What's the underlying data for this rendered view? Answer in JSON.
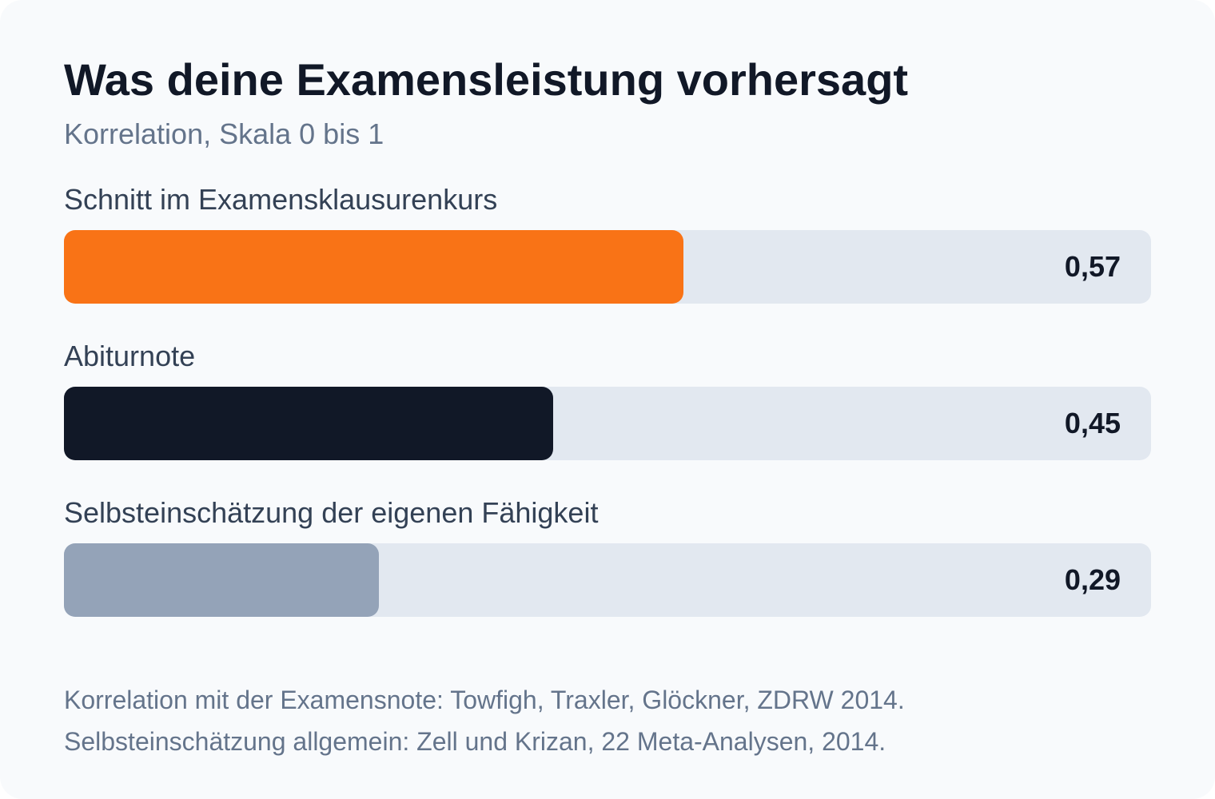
{
  "title": "Was deine Examensleistung vorhersagt",
  "subtitle": "Korrelation, Skala 0 bis 1",
  "sources": [
    "Korrelation mit der Examensnote: Towfigh, Traxler, Glöckner, ZDRW 2014.",
    "Selbsteinschätzung allgemein: Zell und Krizan, 22 Meta-Analysen, 2014."
  ],
  "colors": {
    "card_background": "#f8fafc",
    "track": "#e2e8f0",
    "text_dark": "#111827",
    "text_muted": "#64748b"
  },
  "chart_data": {
    "type": "bar",
    "orientation": "horizontal",
    "title": "Was deine Examensleistung vorhersagt",
    "subtitle": "Korrelation, Skala 0 bis 1",
    "xlim": [
      0,
      1
    ],
    "grid": false,
    "categories": [
      "Schnitt im Examensklausurenkurs",
      "Abiturnote",
      "Selbsteinschätzung der eigenen Fähigkeit"
    ],
    "values": [
      0.57,
      0.45,
      0.29
    ],
    "value_labels": [
      "0,57",
      "0,45",
      "0,29"
    ],
    "bar_colors": [
      "#f97316",
      "#111827",
      "#94a3b8"
    ]
  }
}
